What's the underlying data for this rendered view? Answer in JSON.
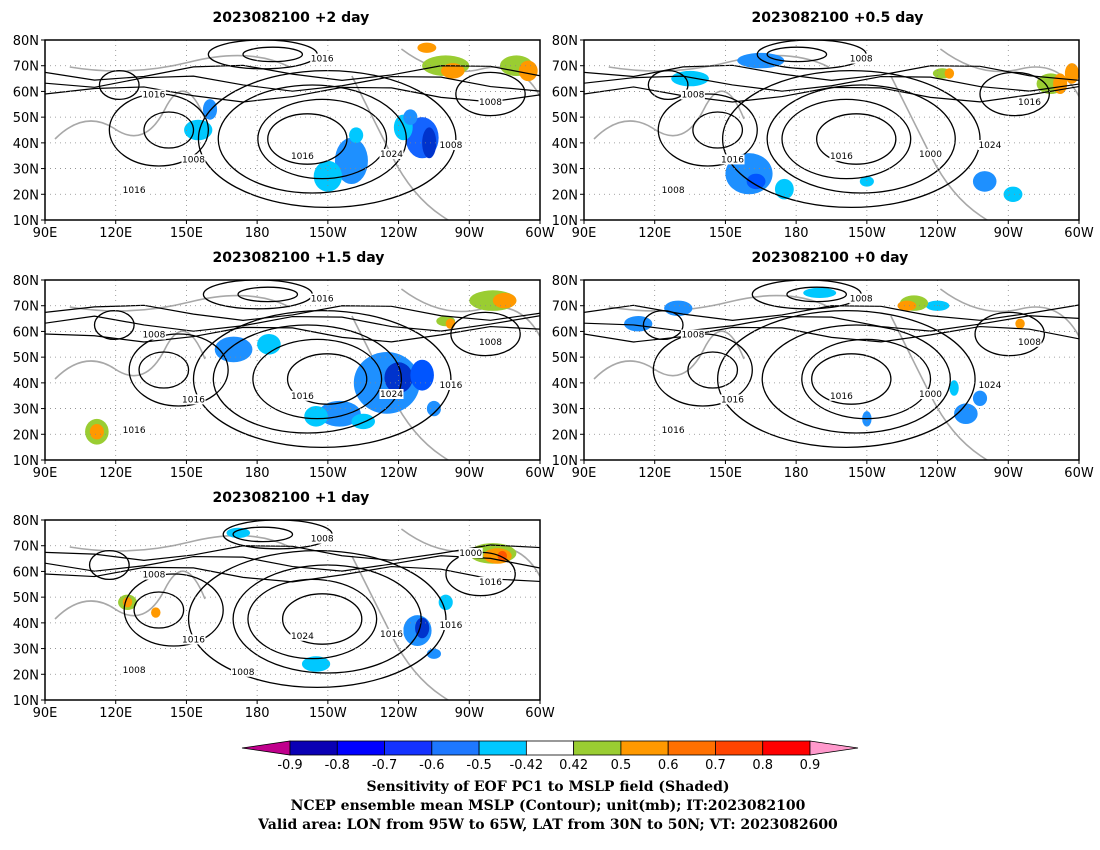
{
  "panels": [
    {
      "title": "2023082100 +2 day",
      "contour_labels": [
        "1016",
        "1016",
        "1008",
        "1016",
        "1024",
        "1008",
        "1016",
        "1008"
      ],
      "shade": [
        {
          "color": "#1e90ff",
          "lon": -140,
          "lat": 33,
          "rx": 7,
          "ry": 9
        },
        {
          "color": "#00c8ff",
          "lon": -150,
          "lat": 27,
          "rx": 6,
          "ry": 6
        },
        {
          "color": "#1464ff",
          "lon": -110,
          "lat": 42,
          "rx": 7,
          "ry": 8
        },
        {
          "color": "#0033cc",
          "lon": -107,
          "lat": 40,
          "rx": 3,
          "ry": 6
        },
        {
          "color": "#00c8ff",
          "lon": -118,
          "lat": 46,
          "rx": 4,
          "ry": 5
        },
        {
          "color": "#00c8ff",
          "lon": -138,
          "lat": 43,
          "rx": 3,
          "ry": 3
        },
        {
          "color": "#1e90ff",
          "lon": -115,
          "lat": 50,
          "rx": 3,
          "ry": 3
        },
        {
          "color": "#00c8ff",
          "lon": 155,
          "lat": 45,
          "rx": 6,
          "ry": 4
        },
        {
          "color": "#1e90ff",
          "lon": 160,
          "lat": 53,
          "rx": 3,
          "ry": 4
        },
        {
          "color": "#9acd32",
          "lon": -100,
          "lat": 70,
          "rx": 10,
          "ry": 4
        },
        {
          "color": "#ff9900",
          "lon": -97,
          "lat": 68,
          "rx": 5,
          "ry": 3
        },
        {
          "color": "#9acd32",
          "lon": -70,
          "lat": 70,
          "rx": 7,
          "ry": 4
        },
        {
          "color": "#ff9900",
          "lon": -65,
          "lat": 68,
          "rx": 4,
          "ry": 4
        },
        {
          "color": "#ff9900",
          "lon": -108,
          "lat": 77,
          "rx": 4,
          "ry": 2
        }
      ]
    },
    {
      "title": "2023082100 +0.5 day",
      "contour_labels": [
        "1008",
        "1008",
        "1016",
        "1016",
        "1000",
        "1024",
        "1008",
        "1016"
      ],
      "shade": [
        {
          "color": "#1e90ff",
          "lon": 165,
          "lat": 72,
          "rx": 10,
          "ry": 3
        },
        {
          "color": "#00c8ff",
          "lon": 135,
          "lat": 65,
          "rx": 8,
          "ry": 3
        },
        {
          "color": "#1e90ff",
          "lon": 160,
          "lat": 28,
          "rx": 10,
          "ry": 8
        },
        {
          "color": "#0055ff",
          "lon": 163,
          "lat": 25,
          "rx": 4,
          "ry": 3
        },
        {
          "color": "#00c8ff",
          "lon": 175,
          "lat": 22,
          "rx": 4,
          "ry": 4
        },
        {
          "color": "#1e90ff",
          "lon": -100,
          "lat": 25,
          "rx": 5,
          "ry": 4
        },
        {
          "color": "#00c8ff",
          "lon": -88,
          "lat": 20,
          "rx": 4,
          "ry": 3
        },
        {
          "color": "#00c8ff",
          "lon": -150,
          "lat": 25,
          "rx": 3,
          "ry": 2
        },
        {
          "color": "#9acd32",
          "lon": -72,
          "lat": 63,
          "rx": 6,
          "ry": 4
        },
        {
          "color": "#ff9900",
          "lon": -68,
          "lat": 63,
          "rx": 3,
          "ry": 4
        },
        {
          "color": "#ff9900",
          "lon": -63,
          "lat": 67,
          "rx": 3,
          "ry": 4
        },
        {
          "color": "#9acd32",
          "lon": -118,
          "lat": 67,
          "rx": 4,
          "ry": 2
        },
        {
          "color": "#ff9900",
          "lon": -115,
          "lat": 67,
          "rx": 2,
          "ry": 2
        }
      ]
    },
    {
      "title": "2023082100 +1.5 day",
      "contour_labels": [
        "1016",
        "1008",
        "1016",
        "1016",
        "1024",
        "1016",
        "1016",
        "1008"
      ],
      "shade": [
        {
          "color": "#1e90ff",
          "lon": -125,
          "lat": 40,
          "rx": 14,
          "ry": 12
        },
        {
          "color": "#0033cc",
          "lon": -120,
          "lat": 42,
          "rx": 6,
          "ry": 6
        },
        {
          "color": "#0055ff",
          "lon": -110,
          "lat": 43,
          "rx": 5,
          "ry": 6
        },
        {
          "color": "#1e90ff",
          "lon": -145,
          "lat": 28,
          "rx": 9,
          "ry": 5
        },
        {
          "color": "#00c8ff",
          "lon": -155,
          "lat": 27,
          "rx": 5,
          "ry": 4
        },
        {
          "color": "#1e90ff",
          "lon": 170,
          "lat": 53,
          "rx": 8,
          "ry": 5
        },
        {
          "color": "#00c8ff",
          "lon": -175,
          "lat": 55,
          "rx": 5,
          "ry": 4
        },
        {
          "color": "#00c8ff",
          "lon": -135,
          "lat": 25,
          "rx": 5,
          "ry": 3
        },
        {
          "color": "#1e90ff",
          "lon": -105,
          "lat": 30,
          "rx": 3,
          "ry": 3
        },
        {
          "color": "#9acd32",
          "lon": 112,
          "lat": 21,
          "rx": 5,
          "ry": 5
        },
        {
          "color": "#ff9900",
          "lon": 112,
          "lat": 21,
          "rx": 3,
          "ry": 3
        },
        {
          "color": "#9acd32",
          "lon": -80,
          "lat": 72,
          "rx": 10,
          "ry": 4
        },
        {
          "color": "#ff9900",
          "lon": -75,
          "lat": 72,
          "rx": 5,
          "ry": 3
        },
        {
          "color": "#9acd32",
          "lon": -100,
          "lat": 64,
          "rx": 4,
          "ry": 2
        },
        {
          "color": "#ff9900",
          "lon": -98,
          "lat": 63,
          "rx": 2,
          "ry": 2
        }
      ]
    },
    {
      "title": "2023082100 +0 day",
      "contour_labels": [
        "1008",
        "1008",
        "1016",
        "1016",
        "1000",
        "1024",
        "1016",
        "1008"
      ],
      "shade": [
        {
          "color": "#1e90ff",
          "lon": 113,
          "lat": 63,
          "rx": 6,
          "ry": 3
        },
        {
          "color": "#1e90ff",
          "lon": 130,
          "lat": 69,
          "rx": 6,
          "ry": 3
        },
        {
          "color": "#00c8ff",
          "lon": -170,
          "lat": 75,
          "rx": 7,
          "ry": 2
        },
        {
          "color": "#00c8ff",
          "lon": -120,
          "lat": 70,
          "rx": 5,
          "ry": 2
        },
        {
          "color": "#1e90ff",
          "lon": -108,
          "lat": 28,
          "rx": 5,
          "ry": 4
        },
        {
          "color": "#00c8ff",
          "lon": -113,
          "lat": 38,
          "rx": 2,
          "ry": 3
        },
        {
          "color": "#1e90ff",
          "lon": -150,
          "lat": 26,
          "rx": 2,
          "ry": 3
        },
        {
          "color": "#1e90ff",
          "lon": -102,
          "lat": 34,
          "rx": 3,
          "ry": 3
        },
        {
          "color": "#9acd32",
          "lon": -130,
          "lat": 71,
          "rx": 6,
          "ry": 3
        },
        {
          "color": "#ff9900",
          "lon": -133,
          "lat": 70,
          "rx": 4,
          "ry": 2
        },
        {
          "color": "#ff9900",
          "lon": -85,
          "lat": 63,
          "rx": 2,
          "ry": 2
        }
      ]
    },
    {
      "title": "2023082100 +1 day",
      "contour_labels": [
        "1008",
        "1008",
        "1016",
        "1024",
        "1016",
        "1016",
        "1008",
        "1016",
        "1008",
        "1000"
      ],
      "shade": [
        {
          "color": "#1e90ff",
          "lon": -112,
          "lat": 37,
          "rx": 6,
          "ry": 6
        },
        {
          "color": "#0033cc",
          "lon": -110,
          "lat": 38,
          "rx": 3,
          "ry": 4
        },
        {
          "color": "#00c8ff",
          "lon": -155,
          "lat": 24,
          "rx": 6,
          "ry": 3
        },
        {
          "color": "#00c8ff",
          "lon": 172,
          "lat": 75,
          "rx": 5,
          "ry": 2
        },
        {
          "color": "#00c8ff",
          "lon": -100,
          "lat": 48,
          "rx": 3,
          "ry": 3
        },
        {
          "color": "#1e90ff",
          "lon": -105,
          "lat": 28,
          "rx": 3,
          "ry": 2
        },
        {
          "color": "#9acd32",
          "lon": 125,
          "lat": 48,
          "rx": 4,
          "ry": 3
        },
        {
          "color": "#ff9900",
          "lon": 125,
          "lat": 48,
          "rx": 2,
          "ry": 2
        },
        {
          "color": "#9acd32",
          "lon": -80,
          "lat": 67,
          "rx": 10,
          "ry": 4
        },
        {
          "color": "#ff9900",
          "lon": -78,
          "lat": 66,
          "rx": 6,
          "ry": 3
        },
        {
          "color": "#ff5500",
          "lon": -76,
          "lat": 66,
          "rx": 2,
          "ry": 2
        },
        {
          "color": "#ff9900",
          "lon": 137,
          "lat": 44,
          "rx": 2,
          "ry": 2
        }
      ]
    }
  ],
  "axes": {
    "lat_labels": [
      "80N",
      "70N",
      "60N",
      "50N",
      "40N",
      "30N",
      "20N",
      "10N"
    ],
    "lon_labels": [
      "90E",
      "120E",
      "150E",
      "180",
      "150W",
      "120W",
      "90W",
      "60W"
    ]
  },
  "colorbar": {
    "colors": [
      "#c0008c",
      "#0a00b4",
      "#0000ff",
      "#1432ff",
      "#1e78ff",
      "#00c8ff",
      "#ffffff",
      "#9acd32",
      "#ff9900",
      "#ff7000",
      "#ff4400",
      "#ff0000",
      "#ff99cc"
    ],
    "labels": [
      "-0.9",
      "-0.8",
      "-0.7",
      "-0.6",
      "-0.5",
      "-0.42",
      "0.42",
      "0.5",
      "0.6",
      "0.7",
      "0.8",
      "0.9"
    ]
  },
  "caption": {
    "line1": "Sensitivity of EOF PC1 to MSLP field (Shaded)",
    "line2": "NCEP ensemble mean MSLP (Contour); unit(mb); IT:2023082100",
    "line3": "Valid area: LON from 95W to 65W, LAT from 30N to 50N; VT: 2023082600"
  }
}
